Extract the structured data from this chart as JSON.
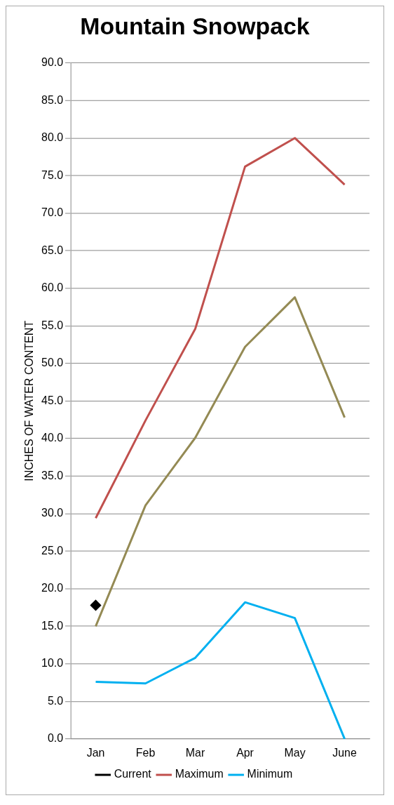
{
  "chart_data": {
    "type": "line",
    "title": "Mountain Snowpack",
    "ylabel": "INCHES OF WATER CONTENT",
    "categories": [
      "Jan",
      "Feb",
      "Mar",
      "Apr",
      "May",
      "June"
    ],
    "series": [
      {
        "name": "Current",
        "color": "#000000",
        "values": [
          17.8,
          null,
          null,
          null,
          null,
          null
        ],
        "marker": "diamond"
      },
      {
        "name": "Maximum",
        "color": "#c0504d",
        "values": [
          29.4,
          42.4,
          54.6,
          76.2,
          80.0,
          73.8
        ],
        "marker": "none"
      },
      {
        "name": "Minimum",
        "color": "#00b0f0",
        "values": [
          7.6,
          7.4,
          10.8,
          18.2,
          16.1,
          0
        ],
        "marker": "none"
      },
      {
        "color": "#948a54",
        "values": [
          15.0,
          31.1,
          40.1,
          52.2,
          58.8,
          42.8
        ],
        "marker": "none"
      }
    ],
    "ylim": [
      0,
      90
    ],
    "yticks": [
      {
        "value": 0,
        "label": "0.0"
      },
      {
        "value": 5,
        "label": "5.0"
      },
      {
        "value": 10,
        "label": "10.0"
      },
      {
        "value": 15,
        "label": "15.0"
      },
      {
        "value": 20,
        "label": "20.0"
      },
      {
        "value": 25,
        "label": "25.0"
      },
      {
        "value": 30,
        "label": "30.0"
      },
      {
        "value": 35,
        "label": "35.0"
      },
      {
        "value": 40,
        "label": "40.0"
      },
      {
        "value": 45,
        "label": "45.0"
      },
      {
        "value": 50,
        "label": "50.0"
      },
      {
        "value": 55,
        "label": "55.0"
      },
      {
        "value": 60,
        "label": "60.0"
      },
      {
        "value": 65,
        "label": "65.0"
      },
      {
        "value": 70,
        "label": "70.0"
      },
      {
        "value": 75,
        "label": "75.0"
      },
      {
        "value": 80,
        "label": "80.0"
      },
      {
        "value": 85,
        "label": "85.0"
      },
      {
        "value": 90,
        "label": "90.0"
      }
    ],
    "grid": "y",
    "legend": "bottom"
  }
}
